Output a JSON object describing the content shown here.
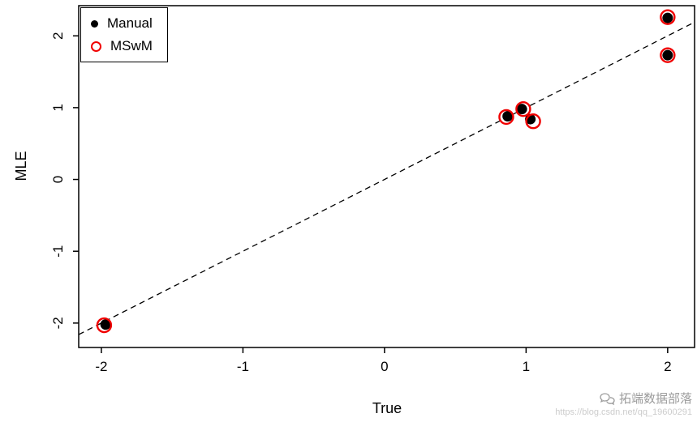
{
  "chart_data": {
    "type": "scatter",
    "title": "",
    "xlabel": "True",
    "ylabel": "MLE",
    "xlim": [
      -2.16,
      2.19
    ],
    "ylim": [
      -2.34,
      2.42
    ],
    "xticks": [
      -2,
      -1,
      0,
      1,
      2
    ],
    "yticks": [
      -2,
      -1,
      0,
      1,
      2
    ],
    "grid": false,
    "reference_line": {
      "style": "dashed",
      "equation": "y = x",
      "from": [
        -2.16,
        -2.16
      ],
      "to": [
        2.19,
        2.19
      ]
    },
    "series": [
      {
        "name": "Manual",
        "marker": "filled-circle",
        "color": "#000000",
        "points": [
          [
            -1.97,
            -2.02
          ],
          [
            0.87,
            0.88
          ],
          [
            0.97,
            0.98
          ],
          [
            1.03,
            0.84
          ],
          [
            2.0,
            2.25
          ],
          [
            2.0,
            1.73
          ]
        ]
      },
      {
        "name": "MSwM",
        "marker": "open-circle",
        "color": "#f00000",
        "points": [
          [
            -1.98,
            -2.03
          ],
          [
            0.86,
            0.87
          ],
          [
            0.98,
            0.98
          ],
          [
            1.05,
            0.81
          ],
          [
            2.0,
            2.26
          ],
          [
            2.0,
            1.73
          ]
        ]
      }
    ],
    "legend": {
      "position": "top-left",
      "entries": [
        {
          "label": "Manual",
          "marker": "filled-circle",
          "color": "#000000"
        },
        {
          "label": "MSwM",
          "marker": "open-circle",
          "color": "#f00000"
        }
      ]
    }
  },
  "watermark": {
    "brand": "拓端数据部落",
    "url": "https://blog.csdn.net/qq_19600291"
  }
}
